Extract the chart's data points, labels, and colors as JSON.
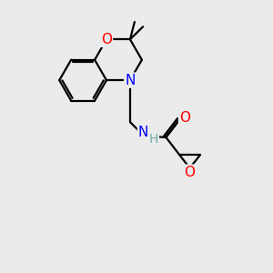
{
  "bg_color": "#ebebeb",
  "atom_colors": {
    "O": "#ff0000",
    "N": "#0000ff",
    "C": "#000000",
    "H": "#6aacac"
  },
  "bond_color": "#000000",
  "bond_width": 1.6,
  "font_size_atoms": 11,
  "figsize": [
    3.0,
    3.0
  ],
  "dpi": 100
}
